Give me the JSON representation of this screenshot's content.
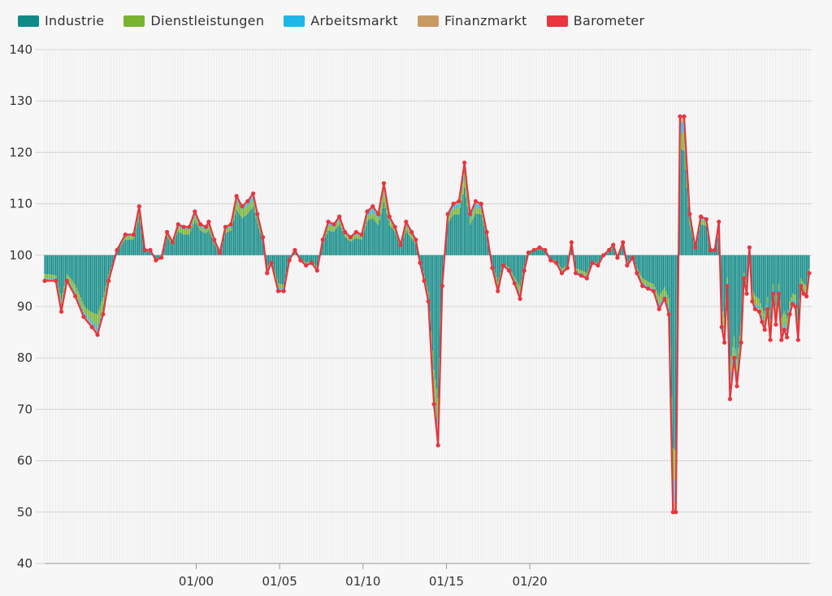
{
  "chart_data": {
    "type": "bar",
    "title": "",
    "xlabel": "",
    "ylabel": "",
    "baseline": 100,
    "ylim": [
      40,
      140
    ],
    "yticks": [
      40,
      50,
      60,
      70,
      80,
      90,
      100,
      110,
      120,
      130,
      140
    ],
    "xticks": [
      "01/00",
      "01/05",
      "01/10",
      "01/15",
      "01/20"
    ],
    "xtick_month_index": [
      121,
      181,
      241,
      301,
      361
    ],
    "x_start_month_index": 12,
    "grid": true,
    "legend": "top-left",
    "components": [
      {
        "name": "Industrie",
        "color": "#108a86"
      },
      {
        "name": "Dienstleistungen",
        "color": "#7ab330"
      },
      {
        "name": "Arbeitsmarkt",
        "color": "#1fb6e8"
      },
      {
        "name": "Finanzmarkt",
        "color": "#c79a64"
      }
    ],
    "barometer": {
      "name": "Barometer",
      "color": "#e8353f"
    },
    "keypoints": [
      [
        12,
        95
      ],
      [
        20,
        95
      ],
      [
        24,
        89
      ],
      [
        28,
        95
      ],
      [
        34,
        92
      ],
      [
        40,
        88
      ],
      [
        46,
        86
      ],
      [
        50,
        84.5
      ],
      [
        54,
        88.5
      ],
      [
        58,
        95
      ],
      [
        64,
        101
      ],
      [
        70,
        104
      ],
      [
        76,
        104
      ],
      [
        80,
        109.5
      ],
      [
        84,
        101
      ],
      [
        88,
        101
      ],
      [
        92,
        99
      ],
      [
        96,
        99.5
      ],
      [
        100,
        104.5
      ],
      [
        104,
        102.5
      ],
      [
        108,
        106
      ],
      [
        112,
        105.5
      ],
      [
        116,
        105.5
      ],
      [
        120,
        108.5
      ],
      [
        124,
        106
      ],
      [
        128,
        105.5
      ],
      [
        130,
        106.5
      ],
      [
        134,
        103
      ],
      [
        138,
        100.5
      ],
      [
        142,
        105.5
      ],
      [
        146,
        106
      ],
      [
        150,
        111.5
      ],
      [
        154,
        109.5
      ],
      [
        158,
        110.5
      ],
      [
        162,
        112
      ],
      [
        165,
        108
      ],
      [
        169,
        103.5
      ],
      [
        172,
        96.5
      ],
      [
        175,
        98.5
      ],
      [
        180,
        93
      ],
      [
        184,
        93
      ],
      [
        188,
        99
      ],
      [
        192,
        101
      ],
      [
        196,
        99
      ],
      [
        200,
        98
      ],
      [
        204,
        98.5
      ],
      [
        208,
        97
      ],
      [
        212,
        103
      ],
      [
        216,
        106.5
      ],
      [
        220,
        106
      ],
      [
        224,
        107.5
      ],
      [
        228,
        104.5
      ],
      [
        232,
        103.5
      ],
      [
        236,
        104.5
      ],
      [
        240,
        104
      ],
      [
        244,
        108.5
      ],
      [
        248,
        109.5
      ],
      [
        252,
        108
      ],
      [
        256,
        114
      ],
      [
        260,
        107.5
      ],
      [
        264,
        105.5
      ],
      [
        268,
        102
      ],
      [
        272,
        106.5
      ],
      [
        276,
        104.5
      ],
      [
        279,
        103
      ],
      [
        282,
        98.5
      ],
      [
        285,
        95
      ],
      [
        288,
        91
      ],
      [
        292,
        71
      ],
      [
        295,
        63
      ],
      [
        298,
        94
      ],
      [
        302,
        108
      ],
      [
        306,
        110
      ],
      [
        310,
        110.5
      ],
      [
        314,
        118
      ],
      [
        318,
        108
      ],
      [
        322,
        110.5
      ],
      [
        326,
        110
      ],
      [
        330,
        104.5
      ],
      [
        334,
        97.5
      ],
      [
        338,
        93
      ],
      [
        342,
        98
      ],
      [
        346,
        97
      ],
      [
        350,
        94.5
      ],
      [
        354,
        91.5
      ],
      [
        357,
        97
      ],
      [
        360,
        100.5
      ],
      [
        364,
        101
      ],
      [
        368,
        101.5
      ],
      [
        372,
        101
      ],
      [
        376,
        99
      ],
      [
        380,
        98.5
      ],
      [
        384,
        96.5
      ],
      [
        388,
        97.5
      ],
      [
        391,
        102.5
      ],
      [
        394,
        96.5
      ],
      [
        398,
        96
      ],
      [
        402,
        95.5
      ],
      [
        406,
        98.5
      ],
      [
        410,
        98
      ],
      [
        414,
        100
      ],
      [
        418,
        101
      ],
      [
        421,
        102
      ],
      [
        424,
        99.5
      ],
      [
        428,
        102.5
      ],
      [
        431,
        98
      ],
      [
        435,
        99.5
      ],
      [
        438,
        96.5
      ],
      [
        442,
        94
      ],
      [
        446,
        93.5
      ],
      [
        450,
        93
      ],
      [
        454,
        89.5
      ],
      [
        458,
        91.5
      ],
      [
        461,
        88.5
      ],
      [
        464,
        50
      ],
      [
        466,
        50
      ],
      [
        469,
        127
      ],
      [
        472,
        127
      ],
      [
        476,
        108
      ],
      [
        480,
        101.5
      ],
      [
        484,
        107.5
      ],
      [
        488,
        107
      ],
      [
        491,
        101
      ],
      [
        494,
        101
      ],
      [
        497,
        106.5
      ],
      [
        499,
        86
      ],
      [
        501,
        83
      ],
      [
        503,
        94
      ],
      [
        505,
        72
      ],
      [
        508,
        80
      ],
      [
        510,
        74.5
      ],
      [
        513,
        83
      ],
      [
        515,
        95.5
      ],
      [
        517,
        92.5
      ],
      [
        519,
        101.5
      ],
      [
        521,
        91
      ],
      [
        523,
        89.5
      ],
      [
        526,
        89
      ],
      [
        528,
        87
      ],
      [
        530,
        85.5
      ],
      [
        532,
        89.5
      ],
      [
        534,
        83.5
      ],
      [
        536,
        92.5
      ],
      [
        538,
        86.5
      ],
      [
        540,
        92.5
      ],
      [
        542,
        83.5
      ],
      [
        544,
        85.5
      ],
      [
        546,
        84
      ],
      [
        548,
        88.5
      ],
      [
        550,
        90.5
      ],
      [
        552,
        90
      ],
      [
        554,
        83.5
      ],
      [
        556,
        94
      ],
      [
        558,
        92.5
      ],
      [
        560,
        92
      ],
      [
        562,
        96.5
      ]
    ]
  },
  "legend_items": [
    {
      "name": "Industrie",
      "color": "#108a86"
    },
    {
      "name": "Dienstleistungen",
      "color": "#7ab330"
    },
    {
      "name": "Arbeitsmarkt",
      "color": "#1fb6e8"
    },
    {
      "name": "Finanzmarkt",
      "color": "#c79a64"
    },
    {
      "name": "Barometer",
      "color": "#e8353f"
    }
  ]
}
